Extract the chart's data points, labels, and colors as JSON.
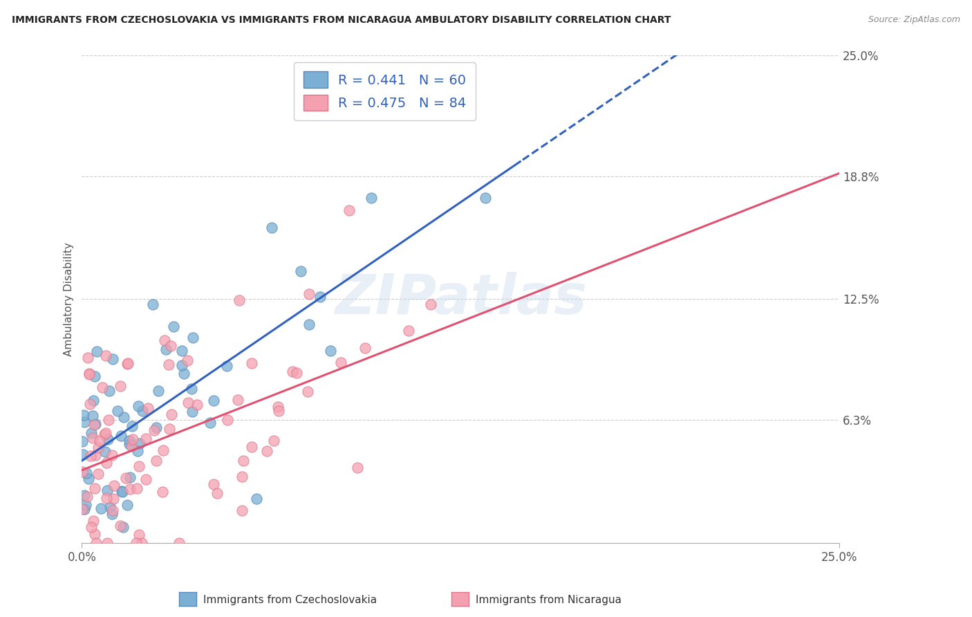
{
  "title": "IMMIGRANTS FROM CZECHOSLOVAKIA VS IMMIGRANTS FROM NICARAGUA AMBULATORY DISABILITY CORRELATION CHART",
  "source": "Source: ZipAtlas.com",
  "ylabel": "Ambulatory Disability",
  "legend_label_1": "Immigrants from Czechoslovakia",
  "legend_label_2": "Immigrants from Nicaragua",
  "R1": 0.441,
  "N1": 60,
  "R2": 0.475,
  "N2": 84,
  "color1": "#7BAFD4",
  "color2": "#F4A0B0",
  "trendline1_color": "#3060C0",
  "trendline2_color": "#E05070",
  "xmin": 0.0,
  "xmax": 0.25,
  "ymin": 0.0,
  "ymax": 0.25,
  "yticks": [
    0.0,
    0.063,
    0.125,
    0.188,
    0.25
  ],
  "ytick_labels": [
    "",
    "6.3%",
    "12.5%",
    "18.8%",
    "25.0%"
  ],
  "background_color": "#FFFFFF",
  "grid_color": "#CCCCCC",
  "watermark": "ZIPatlas"
}
